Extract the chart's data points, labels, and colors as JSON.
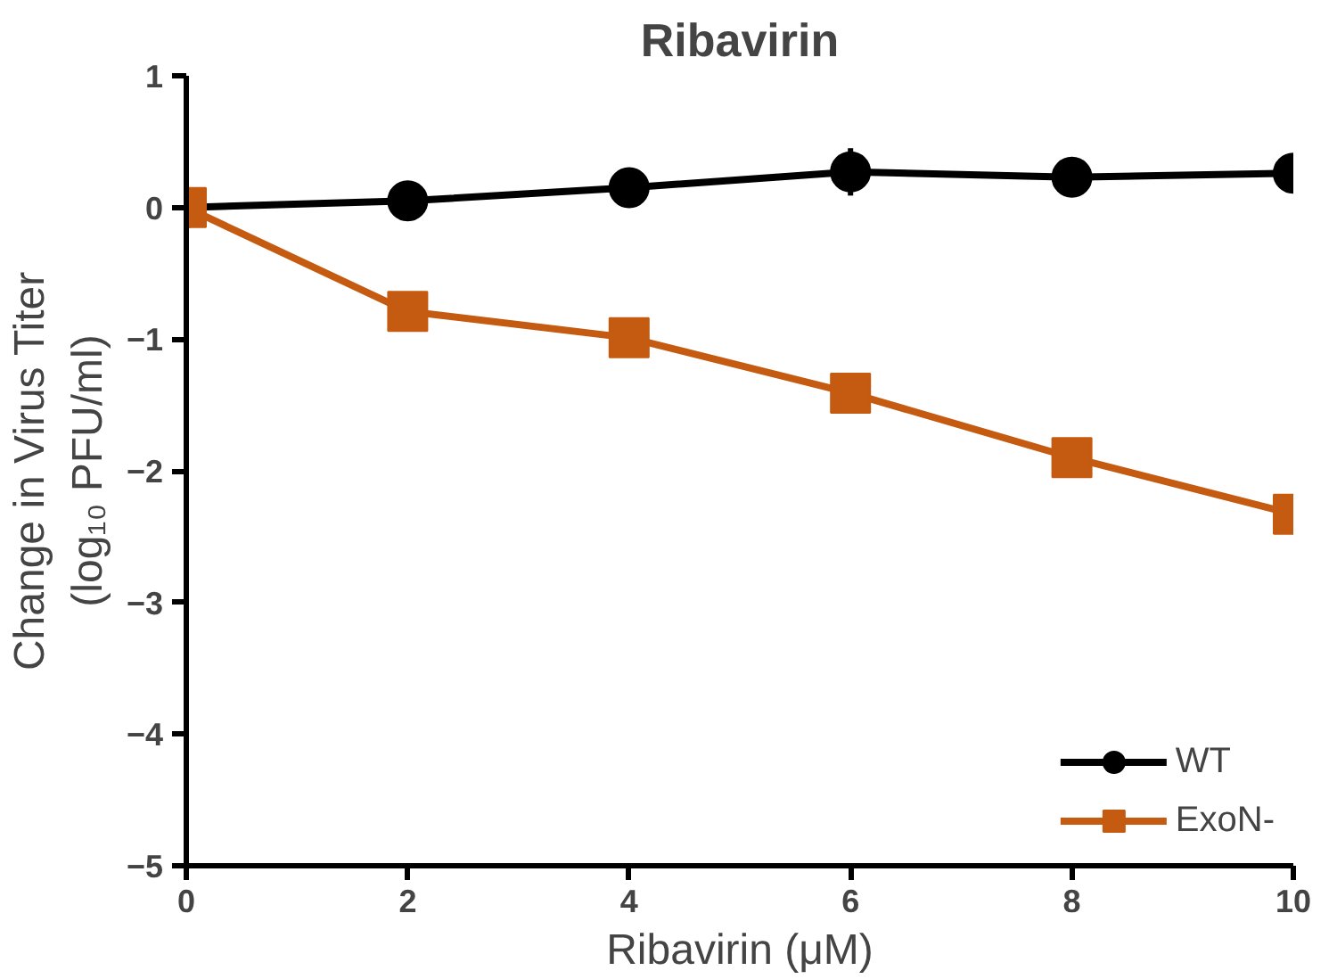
{
  "chart_data": {
    "type": "line",
    "title": "Ribavirin",
    "xlabel": "Ribavirin (μM)",
    "ylabel": "Change in Virus Titer\n(log₁₀ PFU/ml)",
    "x": [
      0,
      2,
      4,
      6,
      8,
      10
    ],
    "series": [
      {
        "name": "WT",
        "color": "#000000",
        "marker": "circle",
        "values": [
          0,
          0.05,
          0.15,
          0.27,
          0.23,
          0.26
        ],
        "errors": [
          null,
          null,
          null,
          0.18,
          null,
          null
        ]
      },
      {
        "name": "ExoN-",
        "color": "#c55a11",
        "marker": "square",
        "values": [
          0,
          -0.79,
          -0.99,
          -1.41,
          -1.9,
          -2.33
        ]
      }
    ],
    "xlim": [
      0,
      10
    ],
    "xticks": [
      0,
      2,
      4,
      6,
      8,
      10
    ],
    "ylim": [
      -5,
      1
    ],
    "yticks": [
      -5,
      -4,
      -3,
      -2,
      -1,
      0,
      1
    ],
    "grid": false,
    "legend": "bottom right",
    "line_style": "solid"
  }
}
